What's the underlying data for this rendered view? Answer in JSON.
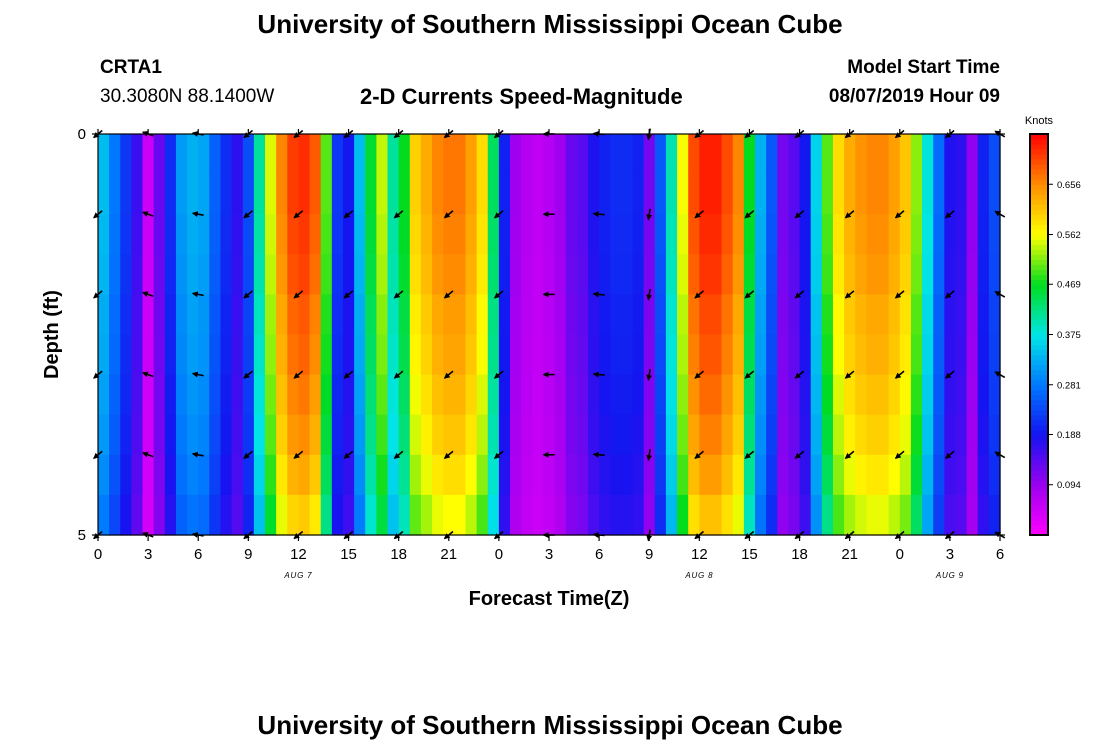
{
  "page": {
    "title_top": "University of Southern Mississippi Ocean Cube",
    "title_bottom": "University of Southern Mississippi Ocean Cube"
  },
  "header": {
    "station": "CRTA1",
    "coords": "30.3080N 88.1400W",
    "plot_title": "2-D Currents Speed-Magnitude",
    "model_label": "Model Start Time",
    "model_time": "08/07/2019 Hour 09"
  },
  "chart_data": {
    "type": "heatmap",
    "title": "2-D Currents Speed-Magnitude",
    "xlabel": "Forecast Time(Z)",
    "ylabel": "Depth (ft)",
    "units": "Knots",
    "xlim": [
      0,
      54
    ],
    "ylim": [
      0,
      5
    ],
    "x_tick_values": [
      0,
      3,
      6,
      9,
      12,
      15,
      18,
      21,
      24,
      27,
      30,
      33,
      36,
      39,
      42,
      45,
      48,
      51,
      54
    ],
    "x_tick_labels": [
      "0",
      "3",
      "6",
      "9",
      "12",
      "15",
      "18",
      "21",
      "0",
      "3",
      "6",
      "9",
      "12",
      "15",
      "18",
      "21",
      "0",
      "3",
      "6"
    ],
    "y_tick_labels": [
      "0",
      "5"
    ],
    "date_labels": [
      {
        "text": "AUG 7",
        "x": 12
      },
      {
        "text": "AUG 8",
        "x": 36
      },
      {
        "text": "AUG 9",
        "x": 51
      }
    ],
    "colorbar": {
      "label": "Knots",
      "min": 0.0,
      "max": 0.75,
      "tick_values": [
        0.094,
        0.188,
        0.281,
        0.375,
        0.469,
        0.562,
        0.656
      ],
      "tick_labels": [
        "0.094",
        "0.188",
        "0.281",
        "0.375",
        "0.469",
        "0.562",
        "0.656"
      ]
    },
    "speed_series": [
      0.34,
      0.28,
      0.22,
      0.16,
      0.05,
      0.13,
      0.21,
      0.31,
      0.33,
      0.32,
      0.26,
      0.21,
      0.17,
      0.24,
      0.41,
      0.55,
      0.66,
      0.71,
      0.72,
      0.69,
      0.5,
      0.22,
      0.19,
      0.34,
      0.46,
      0.54,
      0.41,
      0.47,
      0.6,
      0.63,
      0.66,
      0.67,
      0.67,
      0.64,
      0.59,
      0.44,
      0.2,
      0.09,
      0.07,
      0.06,
      0.07,
      0.09,
      0.13,
      0.14,
      0.18,
      0.2,
      0.21,
      0.21,
      0.2,
      0.12,
      0.25,
      0.4,
      0.56,
      0.7,
      0.73,
      0.73,
      0.7,
      0.66,
      0.47,
      0.33,
      0.25,
      0.12,
      0.14,
      0.19,
      0.36,
      0.5,
      0.59,
      0.63,
      0.65,
      0.66,
      0.66,
      0.64,
      0.61,
      0.52,
      0.38,
      0.27,
      0.18,
      0.17,
      0.1,
      0.2,
      0.24
    ],
    "depth_factor": [
      1.0,
      1.0,
      0.99,
      0.98,
      0.96,
      0.95,
      0.93,
      0.91,
      0.88,
      0.84
    ],
    "vectors": {
      "times": [
        0,
        3,
        6,
        9,
        12,
        15,
        18,
        21,
        24,
        27,
        30,
        33,
        36,
        39,
        42,
        45,
        48,
        51,
        54
      ],
      "depths": [
        0,
        1,
        2,
        3,
        4,
        5
      ],
      "directions_deg": [
        140,
        200,
        190,
        140,
        140,
        140,
        140,
        140,
        140,
        180,
        185,
        100,
        140,
        140,
        140,
        140,
        140,
        140,
        210
      ]
    }
  }
}
